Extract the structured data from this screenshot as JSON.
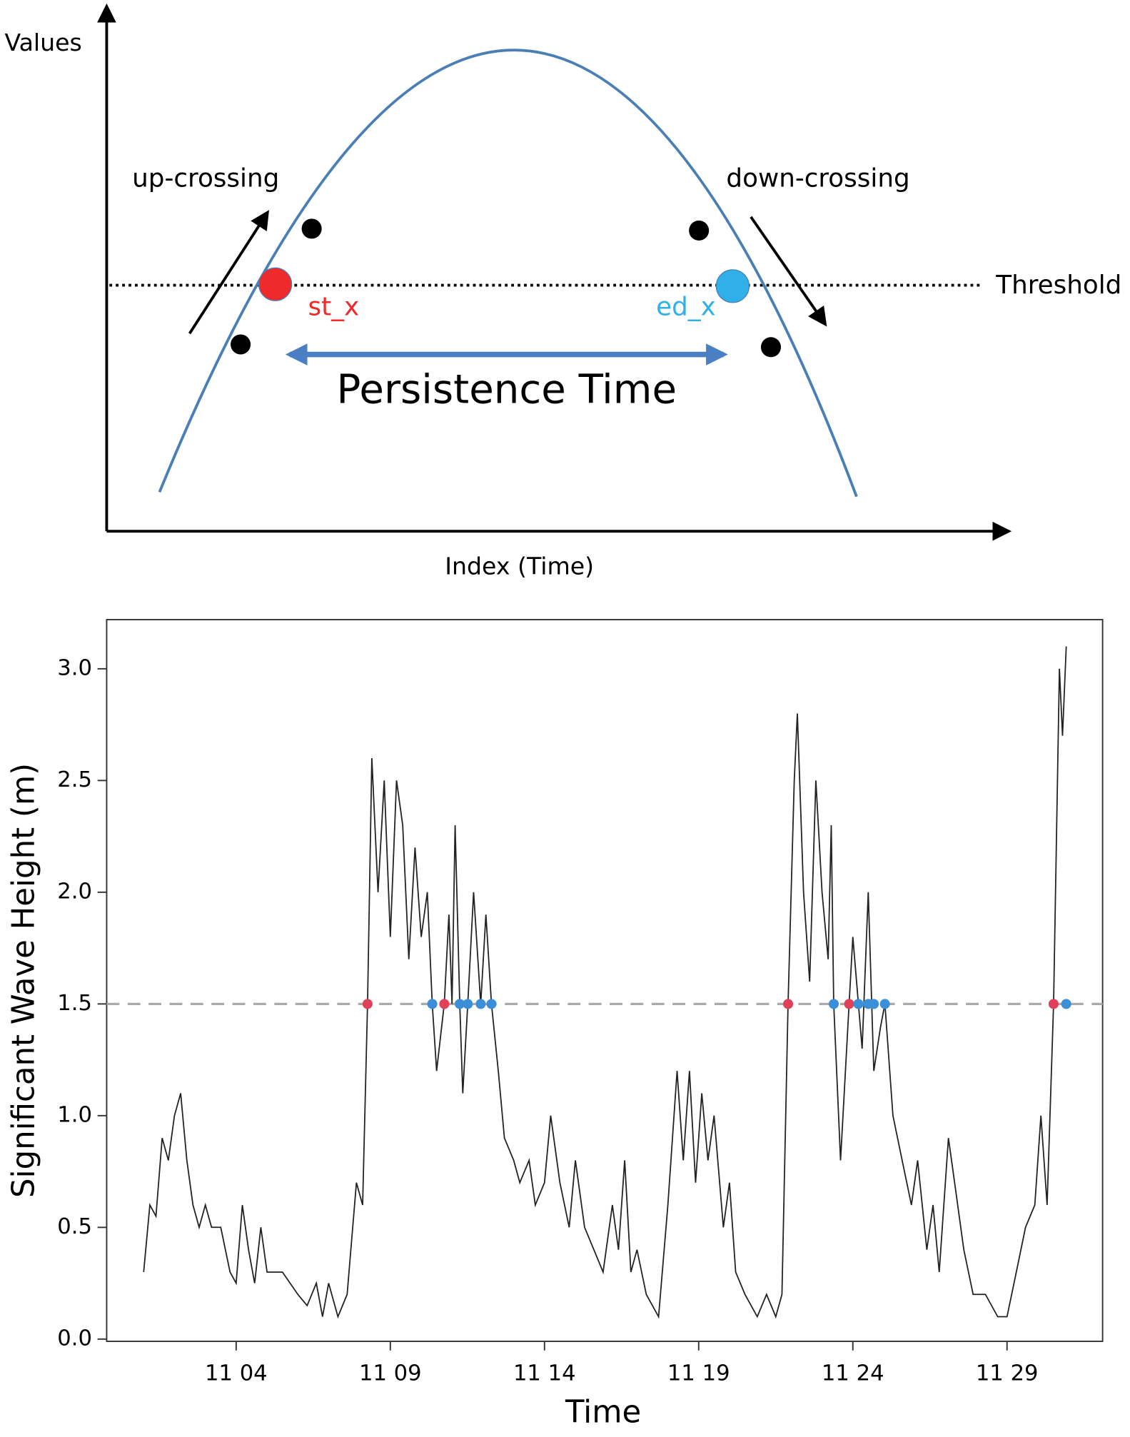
{
  "diagram": {
    "y_axis_label": "Values",
    "x_axis_label": "Index (Time)",
    "up_label": "up-crossing",
    "down_label": "down-crossing",
    "threshold_label": "Threshold",
    "start_label": "st_x",
    "end_label": "ed_x",
    "span_label": "Persistence Time"
  },
  "chart_data": {
    "type": "line",
    "x_label": "Time",
    "y_label": "Significant Wave Height (m)",
    "xlim": [
      -0.2,
      32.1
    ],
    "ylim": [
      -0.01,
      3.22
    ],
    "xticks": [
      {
        "value": 4,
        "label": "11 04"
      },
      {
        "value": 9,
        "label": "11 09"
      },
      {
        "value": 14,
        "label": "11 14"
      },
      {
        "value": 19,
        "label": "11 19"
      },
      {
        "value": 24,
        "label": "11 24"
      },
      {
        "value": 29,
        "label": "11 29"
      }
    ],
    "yticks": [
      {
        "value": 0,
        "label": "0.0"
      },
      0.5,
      {
        "value": 1,
        "label": "1.0"
      },
      1.5,
      {
        "value": 2,
        "label": "2.0"
      },
      2.5,
      {
        "value": 3,
        "label": "3.0"
      }
    ],
    "threshold": 1.5,
    "threshold_color": "#aaaaaa",
    "series": [
      {
        "color": "#222222",
        "type": "line",
        "x": [
          1.0,
          1.2,
          1.4,
          1.6,
          1.8,
          2.0,
          2.2,
          2.4,
          2.6,
          2.8,
          3.0,
          3.2,
          3.5,
          3.8,
          4.0,
          4.2,
          4.4,
          4.6,
          4.8,
          5.0,
          5.5,
          6.0,
          6.3,
          6.6,
          6.8,
          7.0,
          7.3,
          7.6,
          7.9,
          8.1,
          8.26,
          8.4,
          8.6,
          8.8,
          9.0,
          9.2,
          9.4,
          9.6,
          9.8,
          10.0,
          10.2,
          10.36,
          10.5,
          10.75,
          10.9,
          11.0,
          11.1,
          11.25,
          11.35,
          11.51,
          11.7,
          11.93,
          12.1,
          12.28,
          12.5,
          12.7,
          13.0,
          13.2,
          13.5,
          13.7,
          14.0,
          14.2,
          14.5,
          14.8,
          15.0,
          15.3,
          15.6,
          15.9,
          16.2,
          16.4,
          16.6,
          16.8,
          17.0,
          17.3,
          17.7,
          18.0,
          18.3,
          18.5,
          18.7,
          18.9,
          19.1,
          19.3,
          19.5,
          19.8,
          20.0,
          20.2,
          20.5,
          20.9,
          21.2,
          21.5,
          21.7,
          21.9,
          22.1,
          22.2,
          22.4,
          22.6,
          22.8,
          23.0,
          23.2,
          23.3,
          23.38,
          23.6,
          23.88,
          24.0,
          24.18,
          24.3,
          24.5,
          24.68,
          24.9,
          25.04,
          25.3,
          25.6,
          25.9,
          26.1,
          26.4,
          26.6,
          26.8,
          27.1,
          27.3,
          27.6,
          27.9,
          28.3,
          28.7,
          29.0,
          29.3,
          29.6,
          29.9,
          30.1,
          30.3,
          30.51,
          30.7,
          30.8,
          30.92
        ],
        "values": [
          0.3,
          0.6,
          0.55,
          0.9,
          0.8,
          1.0,
          1.1,
          0.8,
          0.6,
          0.5,
          0.6,
          0.5,
          0.5,
          0.3,
          0.25,
          0.6,
          0.4,
          0.25,
          0.5,
          0.3,
          0.3,
          0.2,
          0.15,
          0.25,
          0.1,
          0.25,
          0.1,
          0.2,
          0.7,
          0.6,
          1.5,
          2.6,
          2.0,
          2.5,
          1.8,
          2.5,
          2.3,
          1.7,
          2.2,
          1.8,
          2.0,
          1.5,
          1.2,
          1.5,
          1.9,
          1.5,
          2.3,
          1.5,
          1.1,
          1.5,
          2.0,
          1.5,
          1.9,
          1.5,
          1.2,
          0.9,
          0.8,
          0.7,
          0.8,
          0.6,
          0.7,
          1.0,
          0.7,
          0.5,
          0.8,
          0.5,
          0.4,
          0.3,
          0.6,
          0.4,
          0.8,
          0.3,
          0.4,
          0.2,
          0.1,
          0.6,
          1.2,
          0.8,
          1.2,
          0.7,
          1.1,
          0.8,
          1.0,
          0.5,
          0.7,
          0.3,
          0.2,
          0.1,
          0.2,
          0.1,
          0.2,
          1.5,
          2.5,
          2.8,
          2.0,
          1.6,
          2.5,
          2.0,
          1.7,
          2.3,
          1.5,
          0.8,
          1.5,
          1.8,
          1.5,
          1.3,
          2.0,
          1.2,
          1.4,
          1.5,
          1.0,
          0.8,
          0.6,
          0.8,
          0.4,
          0.6,
          0.3,
          0.9,
          0.7,
          0.4,
          0.2,
          0.2,
          0.1,
          0.1,
          0.3,
          0.5,
          0.6,
          1.0,
          0.6,
          1.5,
          3.0,
          2.7,
          3.1
        ]
      },
      {
        "color": "#e0405a",
        "type": "scatter",
        "x": [
          8.26,
          10.75,
          21.9,
          23.88,
          30.51
        ],
        "values": [
          1.5,
          1.5,
          1.5,
          1.5,
          1.5
        ]
      },
      {
        "color": "#3a8fd8",
        "type": "scatter",
        "x": [
          10.36,
          11.25,
          11.51,
          11.93,
          12.28,
          23.38,
          24.18,
          24.5,
          24.68,
          25.04,
          30.92
        ],
        "values": [
          1.5,
          1.5,
          1.5,
          1.5,
          1.5,
          1.5,
          1.5,
          1.5,
          1.5,
          1.5,
          1.5
        ]
      }
    ]
  }
}
